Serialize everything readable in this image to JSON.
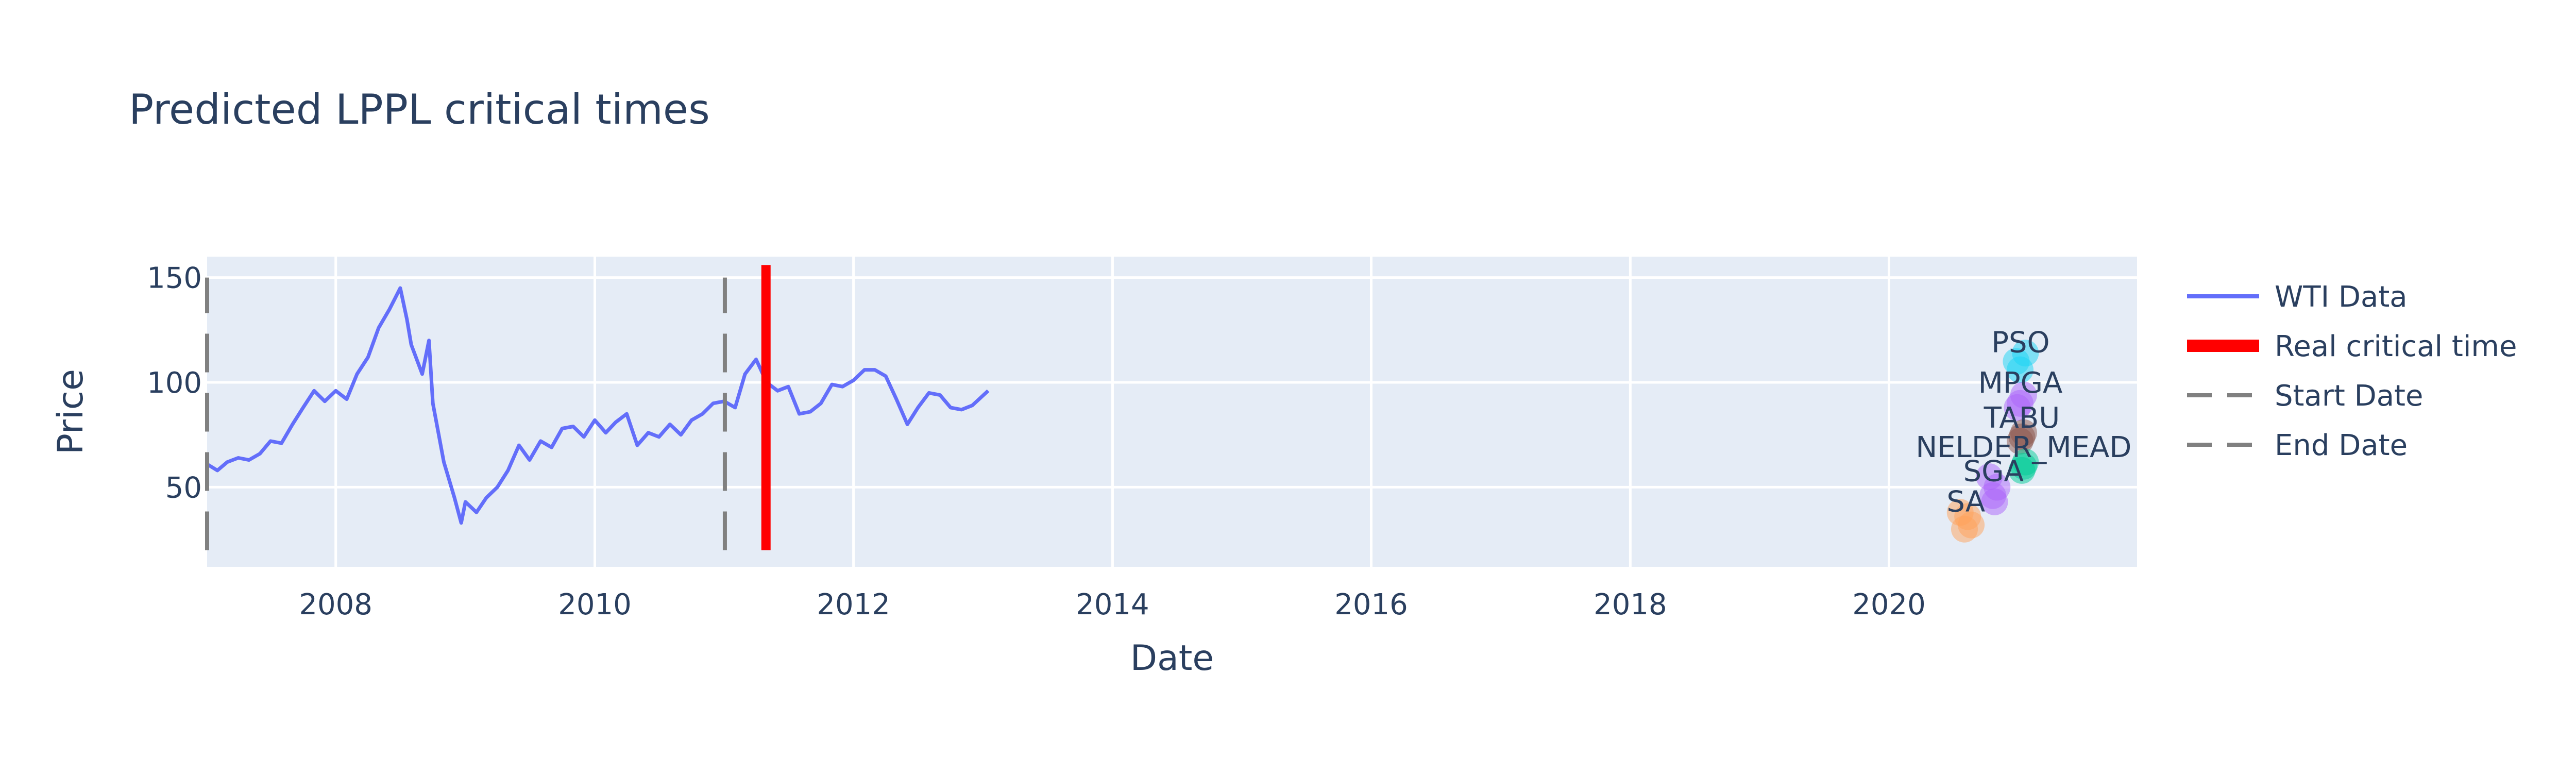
{
  "chart_data": {
    "type": "line",
    "title": "Predicted LPPL critical times",
    "xlabel": "Date",
    "ylabel": "Price",
    "xlim": [
      "2007-01-03",
      "2021-12-01"
    ],
    "ylim": [
      12,
      160
    ],
    "x_ticks": [
      "2008",
      "2010",
      "2012",
      "2014",
      "2016",
      "2018",
      "2020"
    ],
    "y_ticks": [
      50,
      100,
      150
    ],
    "grid": true,
    "legend_position": "right",
    "colors": {
      "wti": "#636efa",
      "critical": "#ff0000",
      "start_end": "#808080",
      "plot_bg": "#e5ecf6",
      "text": "#2a3f5f"
    },
    "series": [
      {
        "name": "WTI Data",
        "kind": "line",
        "color": "#636efa",
        "points": [
          [
            "2007-01-03",
            61
          ],
          [
            "2007-02-01",
            58
          ],
          [
            "2007-03-01",
            62
          ],
          [
            "2007-04-01",
            64
          ],
          [
            "2007-05-01",
            63
          ],
          [
            "2007-06-01",
            66
          ],
          [
            "2007-07-01",
            72
          ],
          [
            "2007-08-01",
            71
          ],
          [
            "2007-09-01",
            80
          ],
          [
            "2007-10-01",
            88
          ],
          [
            "2007-11-01",
            96
          ],
          [
            "2007-12-01",
            91
          ],
          [
            "2008-01-01",
            96
          ],
          [
            "2008-02-01",
            92
          ],
          [
            "2008-03-01",
            104
          ],
          [
            "2008-04-01",
            112
          ],
          [
            "2008-05-01",
            126
          ],
          [
            "2008-06-01",
            135
          ],
          [
            "2008-07-01",
            145
          ],
          [
            "2008-07-20",
            130
          ],
          [
            "2008-08-01",
            118
          ],
          [
            "2008-09-01",
            104
          ],
          [
            "2008-09-20",
            120
          ],
          [
            "2008-10-01",
            90
          ],
          [
            "2008-11-01",
            62
          ],
          [
            "2008-12-01",
            45
          ],
          [
            "2008-12-20",
            33
          ],
          [
            "2009-01-01",
            43
          ],
          [
            "2009-02-01",
            38
          ],
          [
            "2009-03-01",
            45
          ],
          [
            "2009-04-01",
            50
          ],
          [
            "2009-05-01",
            58
          ],
          [
            "2009-06-01",
            70
          ],
          [
            "2009-07-01",
            63
          ],
          [
            "2009-08-01",
            72
          ],
          [
            "2009-09-01",
            69
          ],
          [
            "2009-10-01",
            78
          ],
          [
            "2009-11-01",
            79
          ],
          [
            "2009-12-01",
            74
          ],
          [
            "2010-01-01",
            82
          ],
          [
            "2010-02-01",
            76
          ],
          [
            "2010-03-01",
            81
          ],
          [
            "2010-04-01",
            85
          ],
          [
            "2010-05-01",
            70
          ],
          [
            "2010-06-01",
            76
          ],
          [
            "2010-07-01",
            74
          ],
          [
            "2010-08-01",
            80
          ],
          [
            "2010-09-01",
            75
          ],
          [
            "2010-10-01",
            82
          ],
          [
            "2010-11-01",
            85
          ],
          [
            "2010-12-01",
            90
          ],
          [
            "2011-01-01",
            91
          ],
          [
            "2011-02-01",
            88
          ],
          [
            "2011-03-01",
            104
          ],
          [
            "2011-04-01",
            111
          ],
          [
            "2011-05-01",
            100
          ],
          [
            "2011-06-01",
            96
          ],
          [
            "2011-07-01",
            98
          ],
          [
            "2011-08-01",
            85
          ],
          [
            "2011-09-01",
            86
          ],
          [
            "2011-10-01",
            90
          ],
          [
            "2011-11-01",
            99
          ],
          [
            "2011-12-01",
            98
          ],
          [
            "2012-01-01",
            101
          ],
          [
            "2012-02-01",
            106
          ],
          [
            "2012-03-01",
            106
          ],
          [
            "2012-04-01",
            103
          ],
          [
            "2012-05-01",
            92
          ],
          [
            "2012-06-01",
            80
          ],
          [
            "2012-07-01",
            88
          ],
          [
            "2012-08-01",
            95
          ],
          [
            "2012-09-01",
            94
          ],
          [
            "2012-10-01",
            88
          ],
          [
            "2012-11-01",
            87
          ],
          [
            "2012-12-01",
            89
          ],
          [
            "2013-01-15",
            96
          ]
        ]
      },
      {
        "name": "Real critical time",
        "kind": "vline",
        "color": "#ff0000",
        "x": "2011-04-29",
        "y_range": [
          20,
          156
        ]
      },
      {
        "name": "Start Date",
        "kind": "vline-dash",
        "color": "#808080",
        "x": "2007-01-03",
        "y_range": [
          20,
          150
        ]
      },
      {
        "name": "End Date",
        "kind": "vline-dash",
        "color": "#808080",
        "x": "2011-01-03",
        "y_range": [
          20,
          150
        ]
      }
    ],
    "predictions": [
      {
        "label": "PSO",
        "color": "#19d3f3",
        "points": [
          [
            "2021-01-05",
            106
          ],
          [
            "2021-01-20",
            114
          ],
          [
            "2020-12-25",
            110
          ]
        ]
      },
      {
        "label": "MPGA",
        "color": "#ab63fa",
        "points": [
          [
            "2021-01-05",
            90
          ],
          [
            "2021-01-15",
            94
          ],
          [
            "2020-12-28",
            88
          ]
        ]
      },
      {
        "label": "TABU",
        "color": "#8c564b",
        "points": [
          [
            "2021-01-10",
            74
          ],
          [
            "2021-01-15",
            76
          ],
          [
            "2021-01-05",
            72
          ]
        ]
      },
      {
        "label": "NELDER_MEAD",
        "color": "#00cc96",
        "points": [
          [
            "2021-01-15",
            60
          ],
          [
            "2021-01-20",
            62
          ],
          [
            "2021-01-10",
            58
          ]
        ]
      },
      {
        "label": "SGA",
        "color": "#ab63fa",
        "points": [
          [
            "2020-10-20",
            46
          ],
          [
            "2020-11-01",
            50
          ],
          [
            "2020-10-10",
            55
          ],
          [
            "2020-10-25",
            43
          ]
        ]
      },
      {
        "label": "SA",
        "color": "#ffa15a",
        "points": [
          [
            "2020-08-01",
            30
          ],
          [
            "2020-08-20",
            32
          ],
          [
            "2020-07-20",
            38
          ],
          [
            "2020-08-10",
            36
          ]
        ]
      }
    ],
    "legend": [
      "WTI Data",
      "Real critical time",
      "Start Date",
      "End Date"
    ]
  }
}
